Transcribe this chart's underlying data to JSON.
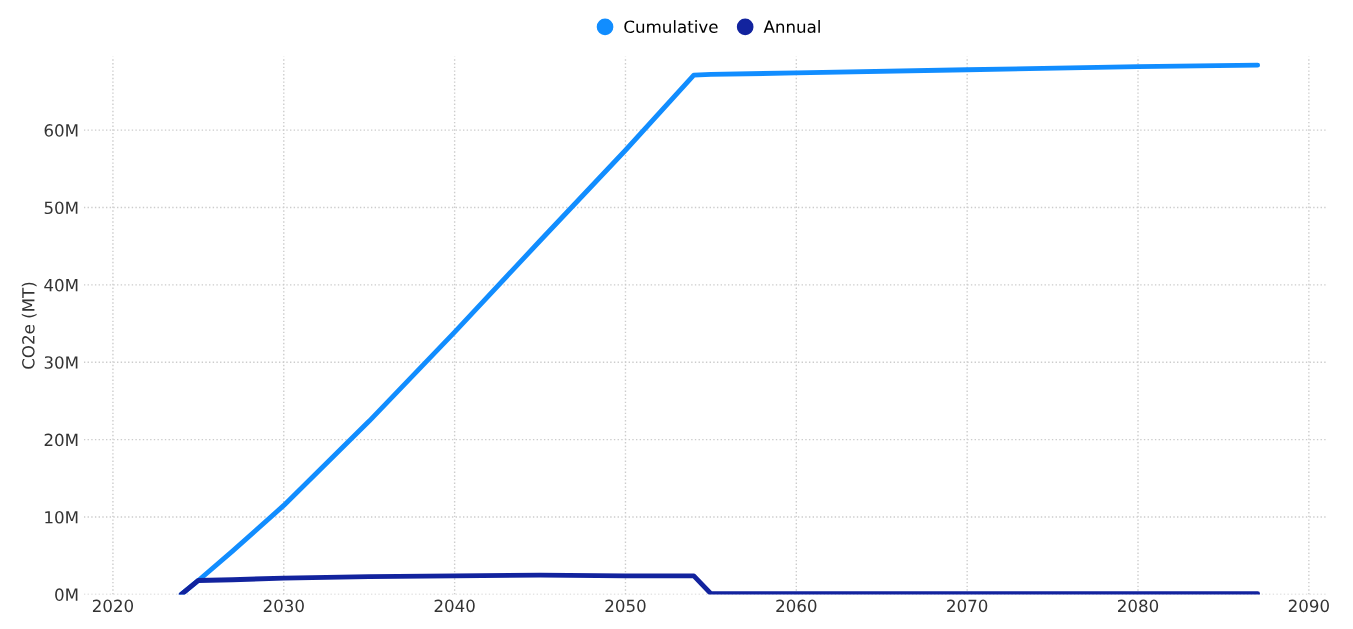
{
  "chart_data": {
    "type": "line",
    "ylabel": "CO2e (MT)",
    "x": [
      2024,
      2025,
      2027,
      2030,
      2035,
      2040,
      2045,
      2050,
      2054,
      2055,
      2060,
      2070,
      2080,
      2087
    ],
    "series": [
      {
        "name": "Cumulative",
        "color": "#118dff",
        "values": [
          0,
          1.8,
          5.6,
          11.5,
          22.4,
          33.9,
          45.7,
          57.4,
          67.1,
          67.2,
          67.4,
          67.8,
          68.2,
          68.4
        ]
      },
      {
        "name": "Annual",
        "color": "#12239e",
        "values": [
          0,
          1.8,
          1.9,
          2.1,
          2.3,
          2.4,
          2.5,
          2.4,
          2.4,
          0.1,
          0.1,
          0.1,
          0.1,
          0.1
        ]
      }
    ],
    "xlim": [
      2018.3,
      2091
    ],
    "xticks": [
      2020,
      2030,
      2040,
      2050,
      2060,
      2070,
      2080,
      2090
    ],
    "ylim": [
      0,
      69.5
    ],
    "yticks": [
      {
        "value": 0,
        "label": "0M"
      },
      {
        "value": 10,
        "label": "10M"
      },
      {
        "value": 20,
        "label": "20M"
      },
      {
        "value": 30,
        "label": "30M"
      },
      {
        "value": 40,
        "label": "40M"
      },
      {
        "value": 50,
        "label": "50M"
      },
      {
        "value": 60,
        "label": "60M"
      }
    ],
    "grid": true,
    "legend": "top",
    "marker": "none",
    "line_style": "solid"
  }
}
